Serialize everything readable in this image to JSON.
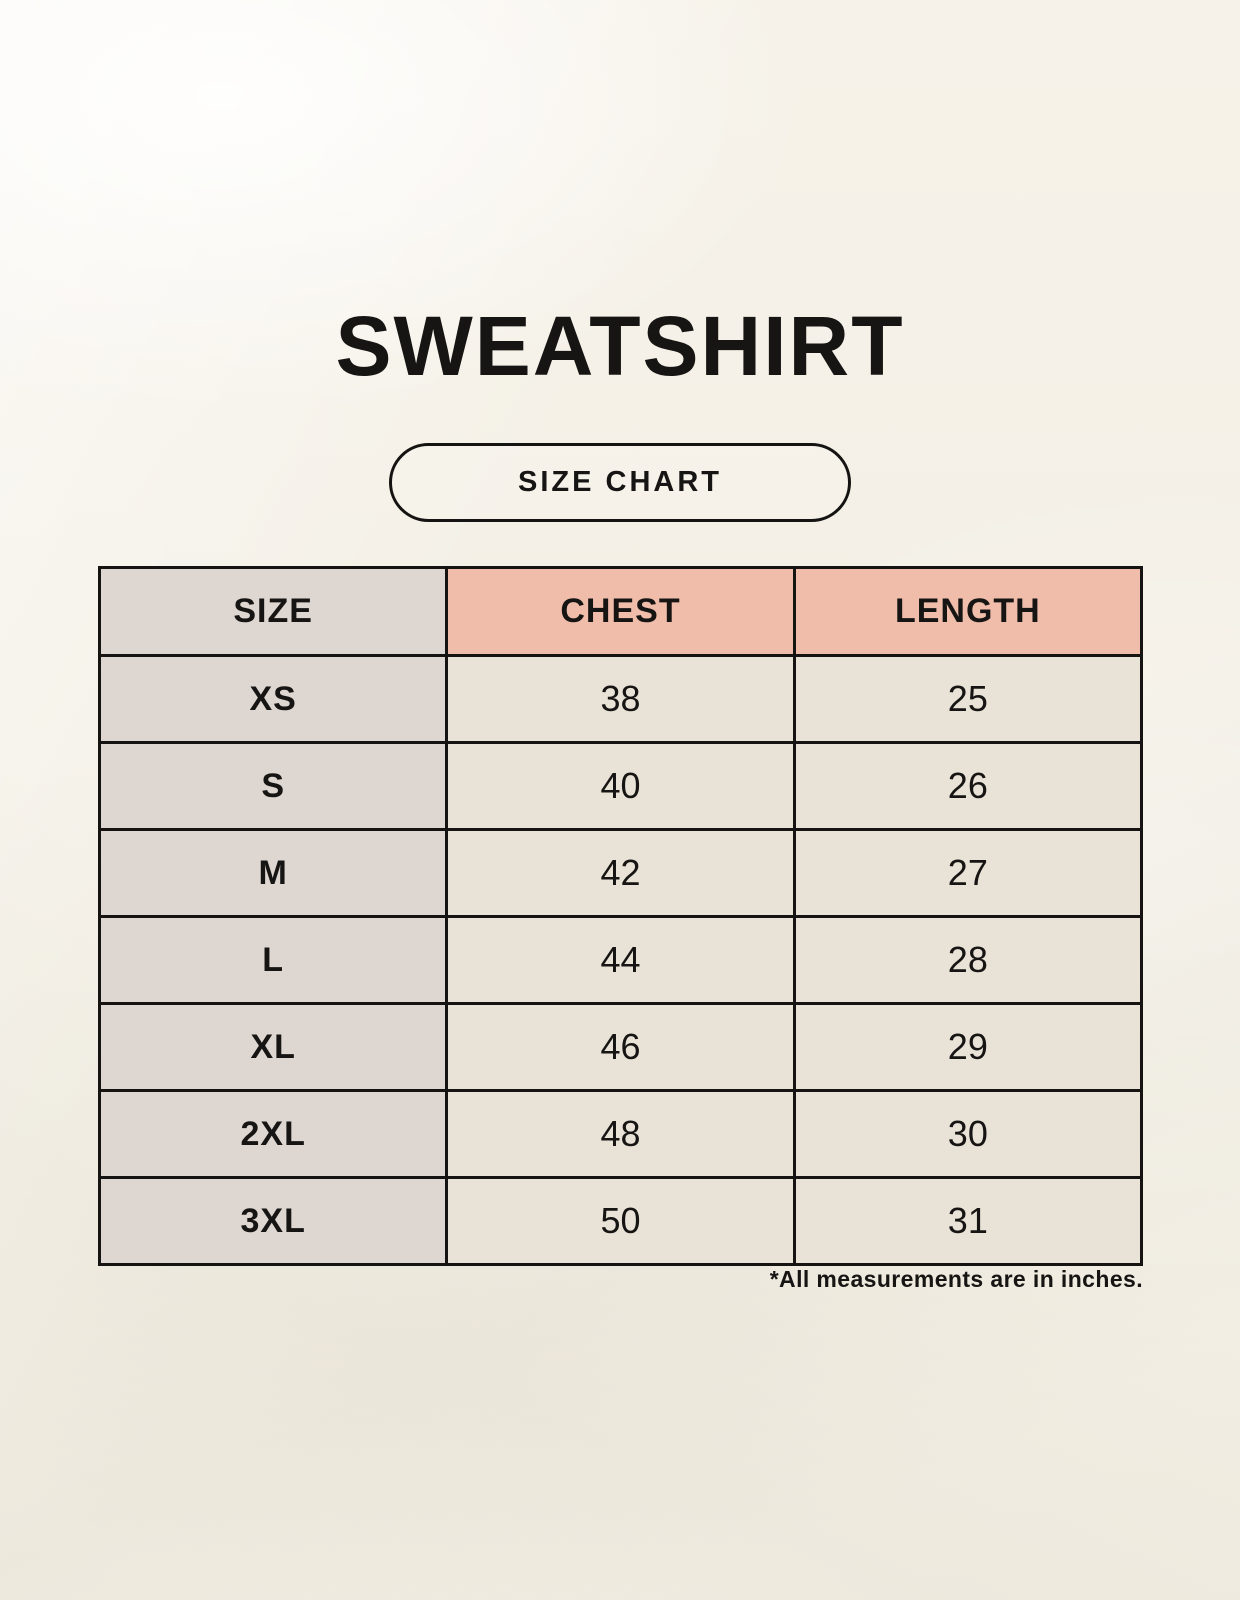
{
  "header": {
    "title": "SWEATSHIRT",
    "badge_label": "SIZE CHART"
  },
  "footnote": "*All measurements are in inches.",
  "colors": {
    "page_bg": "#f6f2e9",
    "size_column_bg": "#ded6d0",
    "header_accent_bg": "#f0bdab",
    "cell_bg": "#e9e2d6",
    "border": "#151412",
    "text": "#161513"
  },
  "chart_data": {
    "type": "table",
    "title": "SWEATSHIRT",
    "columns": [
      "SIZE",
      "CHEST",
      "LENGTH"
    ],
    "rows": [
      [
        "XS",
        38,
        25
      ],
      [
        "S",
        40,
        26
      ],
      [
        "M",
        42,
        27
      ],
      [
        "L",
        44,
        28
      ],
      [
        "XL",
        46,
        29
      ],
      [
        "2XL",
        48,
        30
      ],
      [
        "3XL",
        50,
        31
      ]
    ],
    "units": "inches"
  }
}
